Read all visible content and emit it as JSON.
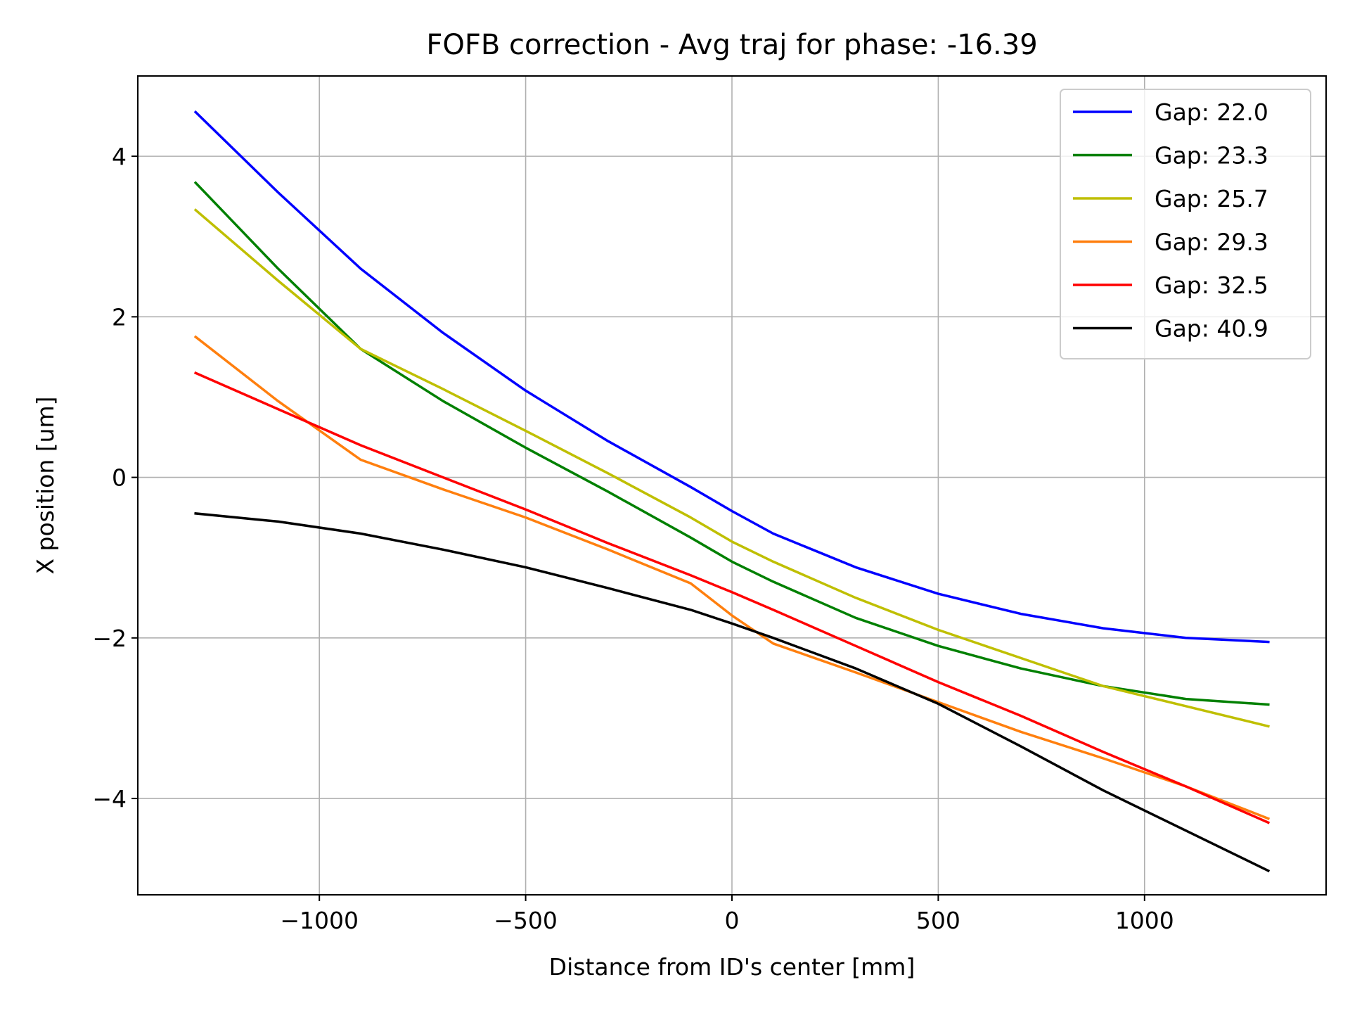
{
  "chart_data": {
    "type": "line",
    "title": "FOFB correction - Avg traj for phase: -16.39",
    "xlabel": "Distance from ID's center [mm]",
    "ylabel": "X position [um]",
    "xlim": [
      -1440,
      1440
    ],
    "ylim": [
      -5.2,
      5.0
    ],
    "xticks": [
      -1000,
      -500,
      0,
      500,
      1000
    ],
    "xtick_labels": [
      "−1000",
      "−500",
      "0",
      "500",
      "1000"
    ],
    "yticks": [
      -4,
      -2,
      0,
      2,
      4
    ],
    "ytick_labels": [
      "−4",
      "−2",
      "0",
      "2",
      "4"
    ],
    "grid": true,
    "legend_position": "top-right",
    "x": [
      -1300,
      -1100,
      -900,
      -700,
      -500,
      -300,
      -100,
      0,
      100,
      300,
      500,
      700,
      900,
      1100,
      1300
    ],
    "series": [
      {
        "name": "Gap: 22.0",
        "color": "#0000ff",
        "values": [
          4.55,
          3.55,
          2.6,
          1.8,
          1.08,
          0.45,
          -0.12,
          -0.42,
          -0.7,
          -1.12,
          -1.45,
          -1.7,
          -1.88,
          -2.0,
          -2.05
        ]
      },
      {
        "name": "Gap: 23.3",
        "color": "#008000",
        "values": [
          3.67,
          2.6,
          1.6,
          0.95,
          0.37,
          -0.18,
          -0.75,
          -1.05,
          -1.3,
          -1.75,
          -2.1,
          -2.38,
          -2.6,
          -2.76,
          -2.83
        ]
      },
      {
        "name": "Gap: 25.7",
        "color": "#bfbf00",
        "values": [
          3.33,
          2.45,
          1.6,
          1.1,
          0.58,
          0.05,
          -0.5,
          -0.8,
          -1.05,
          -1.5,
          -1.9,
          -2.25,
          -2.6,
          -2.85,
          -3.1
        ]
      },
      {
        "name": "Gap: 29.3",
        "color": "#ff7f0e",
        "values": [
          1.75,
          0.95,
          0.22,
          -0.15,
          -0.5,
          -0.9,
          -1.32,
          -1.72,
          -2.07,
          -2.43,
          -2.8,
          -3.17,
          -3.5,
          -3.85,
          -4.25
        ]
      },
      {
        "name": "Gap: 32.5",
        "color": "#ff0000",
        "values": [
          1.3,
          0.85,
          0.4,
          0.0,
          -0.4,
          -0.82,
          -1.22,
          -1.43,
          -1.65,
          -2.1,
          -2.55,
          -2.97,
          -3.42,
          -3.85,
          -4.3
        ]
      },
      {
        "name": "Gap: 40.9",
        "color": "#000000",
        "values": [
          -0.45,
          -0.55,
          -0.7,
          -0.9,
          -1.12,
          -1.38,
          -1.65,
          -1.82,
          -2.0,
          -2.38,
          -2.82,
          -3.35,
          -3.9,
          -4.4,
          -4.9
        ]
      }
    ]
  }
}
